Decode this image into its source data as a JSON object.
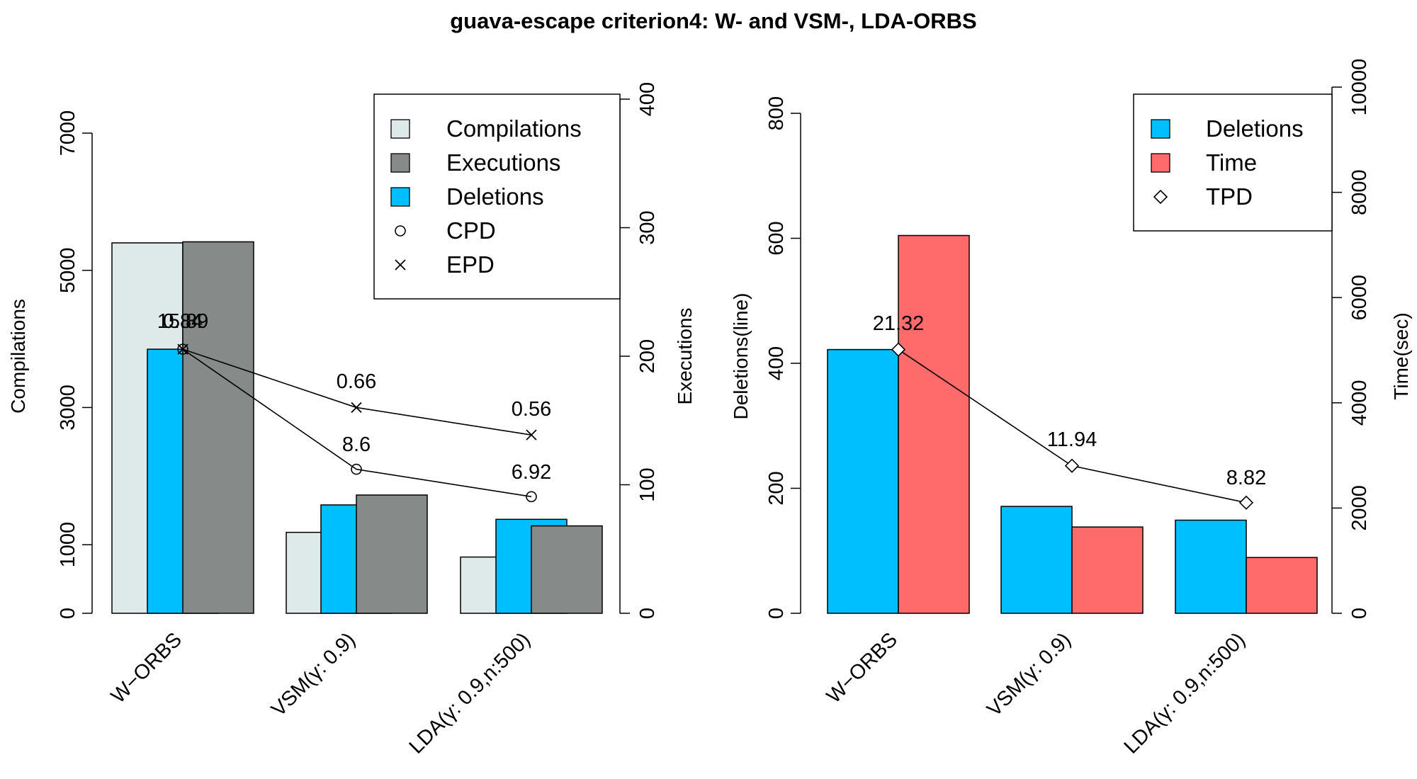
{
  "title": "guava-escape criterion4: W- and VSM-, LDA-ORBS",
  "chart_data": [
    {
      "type": "bar",
      "categories": [
        "W−ORBS",
        "VSM(γ: 0.9)",
        "LDA(γ: 0.9,n:500)"
      ],
      "left_axis": {
        "label": "Compilations",
        "range": [
          0,
          7000
        ],
        "ticks": [
          "0",
          "1000",
          "3000",
          "5000",
          "7000"
        ],
        "tick_values": [
          0,
          1000,
          3000,
          5000,
          7000
        ]
      },
      "right_axis": {
        "label": "Executions",
        "range": [
          0,
          400
        ],
        "ticks": [
          "0",
          "100",
          "200",
          "300",
          "400"
        ],
        "tick_values": [
          0,
          100,
          200,
          300,
          400
        ]
      },
      "series": [
        {
          "name": "Compilations",
          "axis": "left",
          "color": "#deeaea",
          "values": [
            5400,
            1180,
            820
          ]
        },
        {
          "name": "Deletions",
          "axis": "left",
          "color": "#00bfff",
          "values": [
            3850,
            1580,
            1370
          ]
        },
        {
          "name": "Executions",
          "axis": "right",
          "color": "#868a88",
          "values": [
            289,
            92,
            68
          ]
        }
      ],
      "lines": [
        {
          "name": "CPD",
          "marker": "circle",
          "axis": "left",
          "values": [
            3850,
            2100,
            1700
          ],
          "labels": [
            "15.89",
            "8.6",
            "6.92"
          ]
        },
        {
          "name": "EPD",
          "marker": "cross",
          "axis": "left",
          "values": [
            3850,
            3000,
            2600
          ],
          "labels": [
            "0.84",
            "0.66",
            "0.56"
          ]
        }
      ],
      "legend": {
        "position": "top-right",
        "entries": [
          "Compilations",
          "Executions",
          "Deletions",
          "CPD",
          "EPD"
        ]
      }
    },
    {
      "type": "bar",
      "categories": [
        "W−ORBS",
        "VSM(γ: 0.9)",
        "LDA(γ: 0.9,n:500)"
      ],
      "left_axis": {
        "label": "Deletions(line)",
        "range": [
          0,
          800
        ],
        "ticks": [
          "0",
          "200",
          "400",
          "600",
          "800"
        ],
        "tick_values": [
          0,
          200,
          400,
          600,
          800
        ]
      },
      "right_axis": {
        "label": "Time(sec)",
        "range": [
          0,
          10000
        ],
        "ticks": [
          "0",
          "2000",
          "4000",
          "6000",
          "8000",
          "10000"
        ],
        "tick_values": [
          0,
          2000,
          4000,
          6000,
          8000,
          10000
        ]
      },
      "series": [
        {
          "name": "Deletions",
          "axis": "left",
          "color": "#00bfff",
          "values": [
            422,
            171,
            149
          ]
        },
        {
          "name": "Time",
          "axis": "right",
          "color": "#ff6a6a",
          "values": [
            7180,
            1640,
            1060
          ]
        }
      ],
      "lines": [
        {
          "name": "TPD",
          "marker": "diamond",
          "axis": "left",
          "values": [
            422,
            236,
            177
          ],
          "labels": [
            "21.32",
            "11.94",
            "8.82"
          ]
        }
      ],
      "legend": {
        "position": "top-right",
        "entries": [
          "Deletions",
          "Time",
          "TPD"
        ]
      }
    }
  ]
}
